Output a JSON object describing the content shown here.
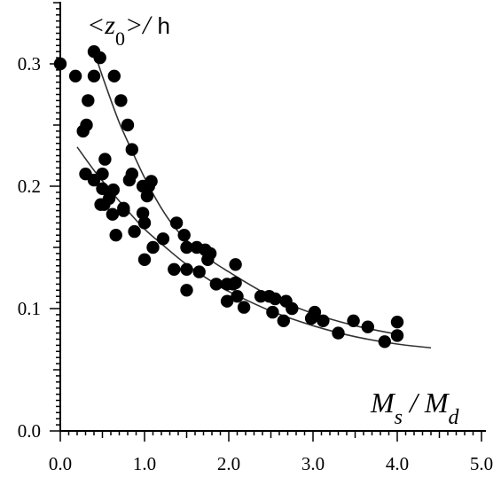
{
  "chart_data": {
    "type": "scatter",
    "title": "",
    "ylabel": "<z0>/ h",
    "ylabel_parts": {
      "open": "<",
      "var": "z",
      "sub": "0",
      "close": ">/",
      "unit": "h"
    },
    "xlabel": "Ms / Md",
    "xlabel_parts": {
      "a": "M",
      "a_sub": "s",
      "sep": " / ",
      "b": "M",
      "b_sub": "d"
    },
    "xlim": [
      0,
      5
    ],
    "ylim": [
      0,
      0.35
    ],
    "xticks": [
      "0.0",
      "1.0",
      "2.0",
      "3.0",
      "4.0",
      "5.0"
    ],
    "xtick_values": [
      0,
      1,
      2,
      3,
      4,
      5
    ],
    "yticks": [
      "0.0",
      "0.1",
      "0.2",
      "0.3"
    ],
    "ytick_values": [
      0,
      0.1,
      0.2,
      0.3
    ],
    "grid": false,
    "series": [
      {
        "values": [
          [
            0.0,
            0.3
          ],
          [
            0.18,
            0.29
          ],
          [
            0.27,
            0.245
          ],
          [
            0.31,
            0.25
          ],
          [
            0.33,
            0.27
          ],
          [
            0.4,
            0.31
          ],
          [
            0.4,
            0.29
          ],
          [
            0.47,
            0.305
          ],
          [
            0.3,
            0.21
          ],
          [
            0.4,
            0.205
          ],
          [
            0.5,
            0.21
          ],
          [
            0.53,
            0.222
          ],
          [
            0.5,
            0.198
          ],
          [
            0.48,
            0.185
          ],
          [
            0.52,
            0.185
          ],
          [
            0.58,
            0.19
          ],
          [
            0.62,
            0.177
          ],
          [
            0.63,
            0.197
          ],
          [
            0.64,
            0.29
          ],
          [
            0.66,
            0.16
          ],
          [
            0.72,
            0.27
          ],
          [
            0.75,
            0.182
          ],
          [
            0.75,
            0.18
          ],
          [
            0.8,
            0.25
          ],
          [
            0.82,
            0.205
          ],
          [
            0.85,
            0.21
          ],
          [
            0.85,
            0.23
          ],
          [
            0.88,
            0.163
          ],
          [
            0.98,
            0.2
          ],
          [
            0.98,
            0.178
          ],
          [
            1.0,
            0.17
          ],
          [
            1.0,
            0.14
          ],
          [
            1.03,
            0.192
          ],
          [
            1.05,
            0.2
          ],
          [
            1.08,
            0.204
          ],
          [
            1.1,
            0.15
          ],
          [
            1.22,
            0.157
          ],
          [
            1.35,
            0.132
          ],
          [
            1.38,
            0.17
          ],
          [
            1.47,
            0.16
          ],
          [
            1.5,
            0.15
          ],
          [
            1.5,
            0.132
          ],
          [
            1.5,
            0.115
          ],
          [
            1.62,
            0.15
          ],
          [
            1.65,
            0.13
          ],
          [
            1.72,
            0.148
          ],
          [
            1.75,
            0.14
          ],
          [
            1.78,
            0.145
          ],
          [
            1.85,
            0.12
          ],
          [
            1.98,
            0.12
          ],
          [
            1.98,
            0.106
          ],
          [
            2.05,
            0.12
          ],
          [
            2.08,
            0.121
          ],
          [
            2.08,
            0.136
          ],
          [
            2.1,
            0.11
          ],
          [
            2.18,
            0.101
          ],
          [
            2.38,
            0.11
          ],
          [
            2.48,
            0.11
          ],
          [
            2.52,
            0.097
          ],
          [
            2.55,
            0.108
          ],
          [
            2.65,
            0.09
          ],
          [
            2.68,
            0.106
          ],
          [
            2.75,
            0.1
          ],
          [
            2.98,
            0.092
          ],
          [
            3.02,
            0.097
          ],
          [
            3.12,
            0.09
          ],
          [
            3.3,
            0.08
          ],
          [
            3.48,
            0.09
          ],
          [
            3.65,
            0.085
          ],
          [
            3.85,
            0.073
          ],
          [
            4.0,
            0.078
          ],
          [
            4.0,
            0.089
          ]
        ]
      }
    ],
    "fits": [
      {
        "x": [
          0.45,
          0.55,
          0.7,
          0.85,
          1.0,
          1.2,
          1.4,
          1.7,
          2.0,
          2.5,
          3.0,
          3.5,
          4.0
        ],
        "y": [
          0.3,
          0.28,
          0.252,
          0.229,
          0.207,
          0.182,
          0.163,
          0.144,
          0.13,
          0.11,
          0.096,
          0.086,
          0.079
        ]
      },
      {
        "x": [
          0.2,
          0.4,
          0.6,
          0.8,
          1.0,
          1.25,
          1.5,
          1.8,
          2.0,
          2.5,
          3.0,
          3.5,
          4.0,
          4.4
        ],
        "y": [
          0.232,
          0.213,
          0.196,
          0.18,
          0.165,
          0.15,
          0.136,
          0.122,
          0.114,
          0.098,
          0.086,
          0.077,
          0.071,
          0.068
        ]
      }
    ],
    "colors": {
      "marker": "#000000",
      "fit": "#333333",
      "axis": "#000000"
    }
  }
}
